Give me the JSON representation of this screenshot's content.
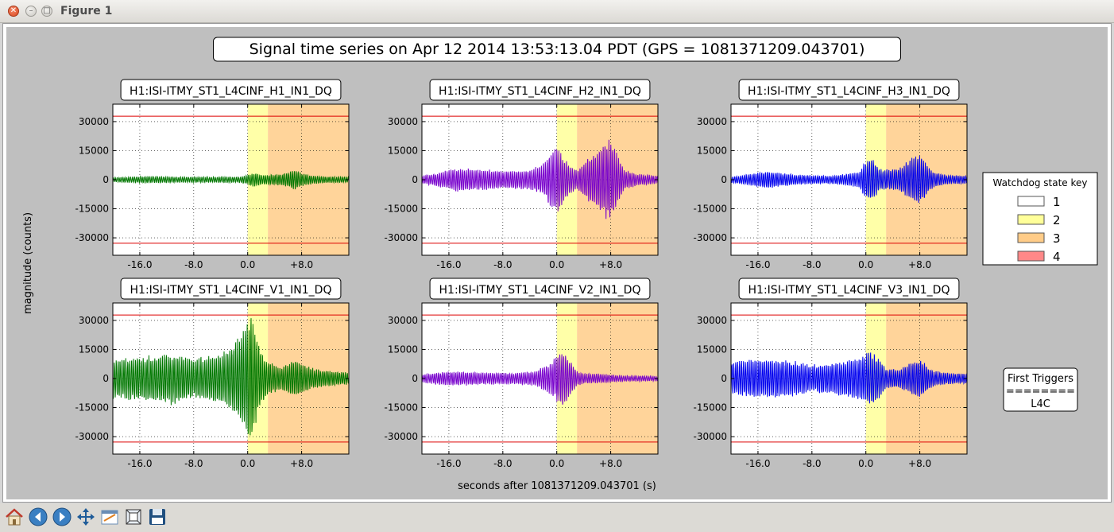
{
  "window": {
    "title": "Figure 1"
  },
  "figure": {
    "suptitle": "Signal time series on Apr 12 2014 13:53:13.04 PDT (GPS = 1081371209.043701)",
    "ylabel": "magnitude (counts)",
    "xlabel": "seconds after 1081371209.043701 (s)"
  },
  "legend": {
    "title": "Watchdog state key",
    "entries": [
      {
        "label": "1",
        "color": "#ffffff"
      },
      {
        "label": "2",
        "color": "#ffff99"
      },
      {
        "label": "3",
        "color": "#ffcc88"
      },
      {
        "label": "4",
        "color": "#ff8888"
      }
    ]
  },
  "triggers_box": {
    "line1": "First Triggers",
    "line2": "========",
    "line3": "L4C"
  },
  "chart_data": [
    {
      "type": "line",
      "title": "H1:ISI-ITMY_ST1_L4CINF_H1_IN1_DQ",
      "color": "#007700",
      "xlim": [
        -20,
        15
      ],
      "ylim": [
        -39000,
        39000
      ],
      "yticks": [
        -30000,
        -15000,
        0,
        15000,
        30000
      ],
      "xticks": [
        -16,
        -8,
        0,
        8
      ],
      "xtick_labels": [
        "-16.0",
        "-8.0",
        "0.0",
        "+8.0"
      ],
      "threshold": 32767,
      "state_regions": [
        {
          "state": 2,
          "x": [
            0,
            3
          ]
        },
        {
          "state": 3,
          "x": [
            3,
            15
          ]
        }
      ],
      "envelope": {
        "x": [
          -20,
          -15,
          -10,
          -5,
          -1,
          0,
          1,
          2,
          3,
          5,
          6,
          7,
          8,
          9,
          10,
          12,
          15
        ],
        "amplitude": [
          1200,
          1800,
          1500,
          1500,
          1600,
          2500,
          3500,
          2500,
          2500,
          3000,
          4000,
          5000,
          3500,
          2500,
          2000,
          1600,
          1500
        ]
      }
    },
    {
      "type": "line",
      "title": "H1:ISI-ITMY_ST1_L4CINF_H2_IN1_DQ",
      "color": "#7700cc",
      "xlim": [
        -20,
        15
      ],
      "ylim": [
        -39000,
        39000
      ],
      "yticks": [
        -30000,
        -15000,
        0,
        15000,
        30000
      ],
      "xticks": [
        -16,
        -8,
        0,
        8
      ],
      "xtick_labels": [
        "-16.0",
        "-8.0",
        "0.0",
        "+8.0"
      ],
      "threshold": 32767,
      "state_regions": [
        {
          "state": 2,
          "x": [
            0,
            3
          ]
        },
        {
          "state": 3,
          "x": [
            3,
            15
          ]
        }
      ],
      "envelope": {
        "x": [
          -20,
          -17,
          -15,
          -12,
          -8,
          -4,
          -2,
          -1,
          0,
          1,
          2,
          3,
          4,
          6,
          7,
          8,
          9,
          10,
          12,
          15
        ],
        "amplitude": [
          2000,
          4000,
          6000,
          5500,
          4500,
          5000,
          8000,
          14000,
          18000,
          12000,
          7000,
          5000,
          9000,
          15000,
          19000,
          20000,
          13000,
          5000,
          3000,
          2000
        ]
      }
    },
    {
      "type": "line",
      "title": "H1:ISI-ITMY_ST1_L4CINF_H3_IN1_DQ",
      "color": "#0000ee",
      "xlim": [
        -20,
        15
      ],
      "ylim": [
        -39000,
        39000
      ],
      "yticks": [
        -30000,
        -15000,
        0,
        15000,
        30000
      ],
      "xticks": [
        -16,
        -8,
        0,
        8
      ],
      "xtick_labels": [
        "-16.0",
        "-8.0",
        "0.0",
        "+8.0"
      ],
      "threshold": 32767,
      "state_regions": [
        {
          "state": 2,
          "x": [
            0,
            3
          ]
        },
        {
          "state": 3,
          "x": [
            3,
            15
          ]
        }
      ],
      "envelope": {
        "x": [
          -20,
          -17,
          -15,
          -10,
          -5,
          -1,
          0,
          1,
          2,
          3,
          5,
          6,
          7,
          8,
          9,
          10,
          12,
          15
        ],
        "amplitude": [
          1500,
          3000,
          4500,
          2500,
          2000,
          4000,
          10000,
          11000,
          6000,
          5000,
          6000,
          9000,
          12000,
          13000,
          8000,
          4000,
          2500,
          2000
        ]
      }
    },
    {
      "type": "line",
      "title": "H1:ISI-ITMY_ST1_L4CINF_V1_IN1_DQ",
      "color": "#007700",
      "xlim": [
        -20,
        15
      ],
      "ylim": [
        -39000,
        39000
      ],
      "yticks": [
        -30000,
        -15000,
        0,
        15000,
        30000
      ],
      "xticks": [
        -16,
        -8,
        0,
        8
      ],
      "xtick_labels": [
        "-16.0",
        "-8.0",
        "0.0",
        "+8.0"
      ],
      "threshold": 32767,
      "state_regions": [
        {
          "state": 2,
          "x": [
            0,
            3
          ]
        },
        {
          "state": 3,
          "x": [
            3,
            15
          ]
        }
      ],
      "envelope": {
        "x": [
          -20,
          -17,
          -14,
          -11,
          -8,
          -5,
          -3,
          -2,
          -1,
          0,
          0.5,
          1,
          2,
          3,
          4,
          5,
          6,
          7,
          8,
          9,
          10,
          12,
          15
        ],
        "amplitude": [
          10000,
          11000,
          12000,
          13000,
          10000,
          12000,
          15000,
          18000,
          23000,
          30000,
          34000,
          26000,
          14000,
          9000,
          7000,
          6000,
          8000,
          10000,
          8000,
          6000,
          5000,
          4000,
          3000
        ]
      }
    },
    {
      "type": "line",
      "title": "H1:ISI-ITMY_ST1_L4CINF_V2_IN1_DQ",
      "color": "#7700cc",
      "xlim": [
        -20,
        15
      ],
      "ylim": [
        -39000,
        39000
      ],
      "yticks": [
        -30000,
        -15000,
        0,
        15000,
        30000
      ],
      "xticks": [
        -16,
        -8,
        0,
        8
      ],
      "xtick_labels": [
        "-16.0",
        "-8.0",
        "0.0",
        "+8.0"
      ],
      "threshold": 32767,
      "state_regions": [
        {
          "state": 2,
          "x": [
            0,
            3
          ]
        },
        {
          "state": 3,
          "x": [
            3,
            15
          ]
        }
      ],
      "envelope": {
        "x": [
          -20,
          -17,
          -14,
          -10,
          -6,
          -3,
          -1,
          0,
          1,
          2,
          3,
          4,
          6,
          8,
          10,
          12,
          15
        ],
        "amplitude": [
          2000,
          3500,
          3500,
          3000,
          3000,
          4000,
          8000,
          12000,
          14000,
          9000,
          4000,
          2500,
          2500,
          2000,
          1500,
          1500,
          1200
        ]
      }
    },
    {
      "type": "line",
      "title": "H1:ISI-ITMY_ST1_L4CINF_V3_IN1_DQ",
      "color": "#0000ee",
      "xlim": [
        -20,
        15
      ],
      "ylim": [
        -39000,
        39000
      ],
      "yticks": [
        -30000,
        -15000,
        0,
        15000,
        30000
      ],
      "xticks": [
        -16,
        -8,
        0,
        8
      ],
      "xtick_labels": [
        "-16.0",
        "-8.0",
        "0.0",
        "+8.0"
      ],
      "threshold": 32767,
      "state_regions": [
        {
          "state": 2,
          "x": [
            0,
            3
          ]
        },
        {
          "state": 3,
          "x": [
            3,
            15
          ]
        }
      ],
      "envelope": {
        "x": [
          -20,
          -17,
          -14,
          -11,
          -8,
          -5,
          -3,
          -1,
          0,
          1,
          2,
          3,
          5,
          6,
          7,
          8,
          9,
          10,
          12,
          15
        ],
        "amplitude": [
          8000,
          10000,
          10000,
          9000,
          7000,
          8000,
          9000,
          11000,
          13000,
          14000,
          10000,
          5000,
          5000,
          7000,
          9000,
          10000,
          7000,
          4000,
          3000,
          2500
        ]
      }
    }
  ],
  "toolbar": {
    "buttons": [
      {
        "name": "home-button",
        "icon": "home-icon"
      },
      {
        "name": "back-button",
        "icon": "arrow-left-icon"
      },
      {
        "name": "forward-button",
        "icon": "arrow-right-icon"
      },
      {
        "name": "pan-button",
        "icon": "pan-icon"
      },
      {
        "name": "configure-button",
        "icon": "configure-icon"
      },
      {
        "name": "edit-button",
        "icon": "edit-icon"
      },
      {
        "name": "save-button",
        "icon": "save-icon"
      }
    ]
  }
}
